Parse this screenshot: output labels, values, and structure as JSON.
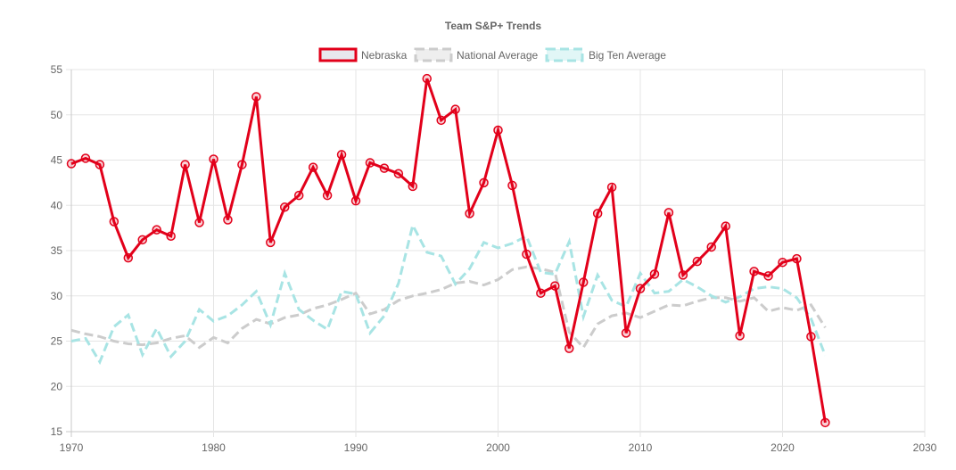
{
  "chart_data": {
    "type": "line",
    "title": "Team S&P+ Trends",
    "xlabel": "",
    "ylabel": "",
    "xlim": [
      1970,
      2030
    ],
    "ylim": [
      15,
      55
    ],
    "x_ticks": [
      "1970",
      "1980",
      "1990",
      "2000",
      "2010",
      "2020",
      "2030"
    ],
    "y_ticks": [
      "15",
      "20",
      "25",
      "30",
      "35",
      "40",
      "45",
      "50",
      "55"
    ],
    "grid": true,
    "legend_position": "top",
    "series": [
      {
        "name": "Nebraska",
        "color": "#e2001a",
        "style": "solid",
        "points": [
          [
            1970,
            44.6
          ],
          [
            1971,
            45.2
          ],
          [
            1972,
            44.5
          ],
          [
            1973,
            38.2
          ],
          [
            1974,
            34.2
          ],
          [
            1975,
            36.2
          ],
          [
            1976,
            37.3
          ],
          [
            1977,
            36.6
          ],
          [
            1978,
            44.5
          ],
          [
            1979,
            38.1
          ],
          [
            1980,
            45.1
          ],
          [
            1981,
            38.4
          ],
          [
            1982,
            44.5
          ],
          [
            1983,
            52.0
          ],
          [
            1984,
            35.9
          ],
          [
            1985,
            39.8
          ],
          [
            1986,
            41.1
          ],
          [
            1987,
            44.2
          ],
          [
            1988,
            41.1
          ],
          [
            1989,
            45.6
          ],
          [
            1990,
            40.5
          ],
          [
            1991,
            44.7
          ],
          [
            1992,
            44.1
          ],
          [
            1993,
            43.5
          ],
          [
            1994,
            42.1
          ],
          [
            1995,
            54.0
          ],
          [
            1996,
            49.4
          ],
          [
            1997,
            50.6
          ],
          [
            1998,
            39.1
          ],
          [
            1999,
            42.5
          ],
          [
            2000,
            48.3
          ],
          [
            2001,
            42.2
          ],
          [
            2002,
            34.6
          ],
          [
            2003,
            30.3
          ],
          [
            2004,
            31.1
          ],
          [
            2005,
            24.2
          ],
          [
            2006,
            31.5
          ],
          [
            2007,
            39.1
          ],
          [
            2008,
            42.0
          ],
          [
            2009,
            25.9
          ],
          [
            2010,
            30.8
          ],
          [
            2011,
            32.4
          ],
          [
            2012,
            39.2
          ],
          [
            2013,
            32.3
          ],
          [
            2014,
            33.8
          ],
          [
            2015,
            35.4
          ],
          [
            2016,
            37.7
          ],
          [
            2017,
            25.6
          ],
          [
            2018,
            32.7
          ],
          [
            2019,
            32.2
          ],
          [
            2020,
            33.7
          ],
          [
            2021,
            34.1
          ],
          [
            2022,
            25.5
          ],
          [
            2023,
            16.0
          ]
        ]
      },
      {
        "name": "National Average",
        "color": "#cccccc",
        "style": "dashed",
        "points": [
          [
            1970,
            26.2
          ],
          [
            1971,
            25.8
          ],
          [
            1972,
            25.5
          ],
          [
            1973,
            25.0
          ],
          [
            1974,
            24.7
          ],
          [
            1975,
            24.6
          ],
          [
            1976,
            24.8
          ],
          [
            1977,
            25.3
          ],
          [
            1978,
            25.6
          ],
          [
            1979,
            24.3
          ],
          [
            1980,
            25.4
          ],
          [
            1981,
            24.8
          ],
          [
            1982,
            26.4
          ],
          [
            1983,
            27.4
          ],
          [
            1984,
            26.9
          ],
          [
            1985,
            27.6
          ],
          [
            1986,
            27.9
          ],
          [
            1987,
            28.6
          ],
          [
            1988,
            29.0
          ],
          [
            1989,
            29.6
          ],
          [
            1990,
            30.3
          ],
          [
            1991,
            28.0
          ],
          [
            1992,
            28.5
          ],
          [
            1993,
            29.5
          ],
          [
            1994,
            30.0
          ],
          [
            1995,
            30.3
          ],
          [
            1996,
            30.7
          ],
          [
            1997,
            31.4
          ],
          [
            1998,
            31.6
          ],
          [
            1999,
            31.2
          ],
          [
            2000,
            31.8
          ],
          [
            2001,
            32.9
          ],
          [
            2002,
            33.2
          ],
          [
            2003,
            33.0
          ],
          [
            2004,
            32.6
          ],
          [
            2005,
            26.0
          ],
          [
            2006,
            24.3
          ],
          [
            2007,
            26.9
          ],
          [
            2008,
            27.8
          ],
          [
            2009,
            28.1
          ],
          [
            2010,
            27.6
          ],
          [
            2011,
            28.3
          ],
          [
            2012,
            29.0
          ],
          [
            2013,
            28.9
          ],
          [
            2014,
            29.4
          ],
          [
            2015,
            29.8
          ],
          [
            2016,
            29.8
          ],
          [
            2017,
            29.4
          ],
          [
            2018,
            29.8
          ],
          [
            2019,
            28.3
          ],
          [
            2020,
            28.7
          ],
          [
            2021,
            28.4
          ],
          [
            2022,
            29.0
          ],
          [
            2023,
            26.5
          ]
        ]
      },
      {
        "name": "Big Ten Average",
        "color": "#a8e4e4",
        "style": "dashed",
        "points": [
          [
            1970,
            25.0
          ],
          [
            1971,
            25.3
          ],
          [
            1972,
            22.7
          ],
          [
            1973,
            26.6
          ],
          [
            1974,
            27.9
          ],
          [
            1975,
            23.5
          ],
          [
            1976,
            26.4
          ],
          [
            1977,
            23.3
          ],
          [
            1978,
            25.0
          ],
          [
            1979,
            28.5
          ],
          [
            1980,
            27.2
          ],
          [
            1981,
            27.8
          ],
          [
            1982,
            29.0
          ],
          [
            1983,
            30.5
          ],
          [
            1984,
            26.8
          ],
          [
            1985,
            32.5
          ],
          [
            1986,
            28.5
          ],
          [
            1987,
            27.3
          ],
          [
            1988,
            26.3
          ],
          [
            1989,
            30.5
          ],
          [
            1990,
            30.2
          ],
          [
            1991,
            25.9
          ],
          [
            1992,
            27.8
          ],
          [
            1993,
            31.4
          ],
          [
            1994,
            37.8
          ],
          [
            1995,
            34.8
          ],
          [
            1996,
            34.4
          ],
          [
            1997,
            31.3
          ],
          [
            1998,
            33.0
          ],
          [
            1999,
            35.9
          ],
          [
            2000,
            35.3
          ],
          [
            2001,
            35.8
          ],
          [
            2002,
            36.6
          ],
          [
            2003,
            32.6
          ],
          [
            2004,
            32.4
          ],
          [
            2005,
            36.0
          ],
          [
            2006,
            27.7
          ],
          [
            2007,
            32.3
          ],
          [
            2008,
            29.5
          ],
          [
            2009,
            28.8
          ],
          [
            2010,
            32.5
          ],
          [
            2011,
            30.3
          ],
          [
            2012,
            30.5
          ],
          [
            2013,
            31.8
          ],
          [
            2014,
            31.0
          ],
          [
            2015,
            30.0
          ],
          [
            2016,
            29.3
          ],
          [
            2017,
            29.9
          ],
          [
            2018,
            30.8
          ],
          [
            2019,
            31.0
          ],
          [
            2020,
            30.8
          ],
          [
            2021,
            29.8
          ],
          [
            2022,
            27.5
          ],
          [
            2023,
            23.4
          ]
        ]
      }
    ]
  }
}
